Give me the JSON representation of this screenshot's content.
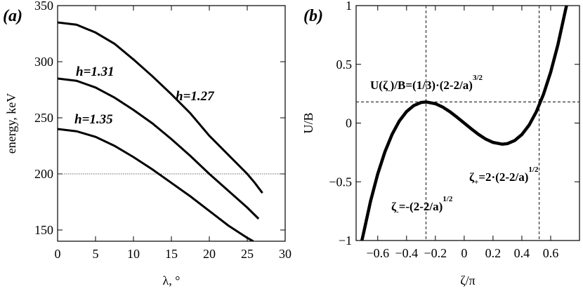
{
  "chart_data": [
    {
      "type": "line",
      "panel_label": "(a)",
      "xlabel": "λ, °",
      "ylabel": "energy, keV",
      "xlim": [
        0,
        30
      ],
      "xticks": [
        0,
        5,
        10,
        15,
        20,
        25,
        30
      ],
      "ylim": [
        140,
        350
      ],
      "yticks": [
        150,
        200,
        250,
        300,
        350
      ],
      "hline": 200,
      "series": [
        {
          "name": "h=1.27",
          "color": "#000000",
          "x": [
            0,
            2.5,
            5,
            7.5,
            10,
            12.5,
            15,
            17.5,
            20,
            22.5,
            25,
            26,
            27
          ],
          "values": [
            335,
            333,
            326,
            316,
            302,
            287,
            271,
            254,
            234,
            217,
            200,
            192,
            183
          ]
        },
        {
          "name": "h=1.31",
          "color": "#000000",
          "x": [
            0,
            2.5,
            5,
            7.5,
            10,
            12.5,
            15,
            17.5,
            20,
            22.5,
            25,
            26.5
          ],
          "values": [
            285,
            283,
            277,
            268,
            257,
            245,
            231,
            216,
            200,
            185,
            170,
            160
          ]
        },
        {
          "name": "h=1.35",
          "color": "#000000",
          "x": [
            0,
            2.5,
            5,
            7.5,
            10,
            12.5,
            15,
            17.5,
            20,
            22.5,
            25,
            25.8
          ],
          "values": [
            240,
            238,
            233,
            225,
            215,
            204,
            192,
            180,
            167,
            154,
            143,
            140
          ]
        }
      ]
    },
    {
      "type": "line",
      "panel_label": "(b)",
      "xlabel": "ζ/π",
      "ylabel": "U/B",
      "xlim": [
        -0.75,
        0.8
      ],
      "xticks": [
        {
          "value": -0.6,
          "label": "−0.6"
        },
        {
          "value": -0.4,
          "label": "−0.4"
        },
        {
          "value": -0.2,
          "label": "−0.2"
        },
        0,
        0.2,
        0.4,
        0.6
      ],
      "ylim": [
        -1,
        1
      ],
      "yticks": [
        {
          "value": -1,
          "label": "−1"
        },
        {
          "value": -0.5,
          "label": "−0.5"
        },
        0,
        0.5,
        1
      ],
      "hline": 0.18,
      "vlines": [
        -0.265,
        0.52
      ],
      "series": [
        {
          "color": "#000000",
          "x": [
            -0.71,
            -0.7,
            -0.65,
            -0.6,
            -0.55,
            -0.5,
            -0.45,
            -0.4,
            -0.35,
            -0.3,
            -0.265,
            -0.2,
            -0.15,
            -0.1,
            -0.05,
            0,
            0.05,
            0.1,
            0.15,
            0.2,
            0.265,
            0.3,
            0.35,
            0.4,
            0.45,
            0.5,
            0.55,
            0.6,
            0.65,
            0.7,
            0.71
          ],
          "values": [
            -1.0,
            -0.946,
            -0.666,
            -0.433,
            -0.244,
            -0.095,
            0.018,
            0.098,
            0.149,
            0.175,
            0.18,
            0.165,
            0.137,
            0.097,
            0.05,
            0,
            -0.05,
            -0.097,
            -0.137,
            -0.165,
            -0.18,
            -0.175,
            -0.149,
            -0.098,
            -0.018,
            0.095,
            0.244,
            0.433,
            0.666,
            0.946,
            1.0
          ]
        }
      ],
      "annotations": [
        {
          "parts": [
            "U(ζ",
            "-",
            ")/B=(1/3)·(2-2/a)",
            "3/2"
          ]
        },
        {
          "parts": [
            "ζ",
            "+",
            "=2·(2-2/a)",
            "1/2"
          ]
        },
        {
          "parts": [
            "ζ",
            "-",
            "=-(2-2/a)",
            "1/2"
          ]
        }
      ]
    }
  ]
}
